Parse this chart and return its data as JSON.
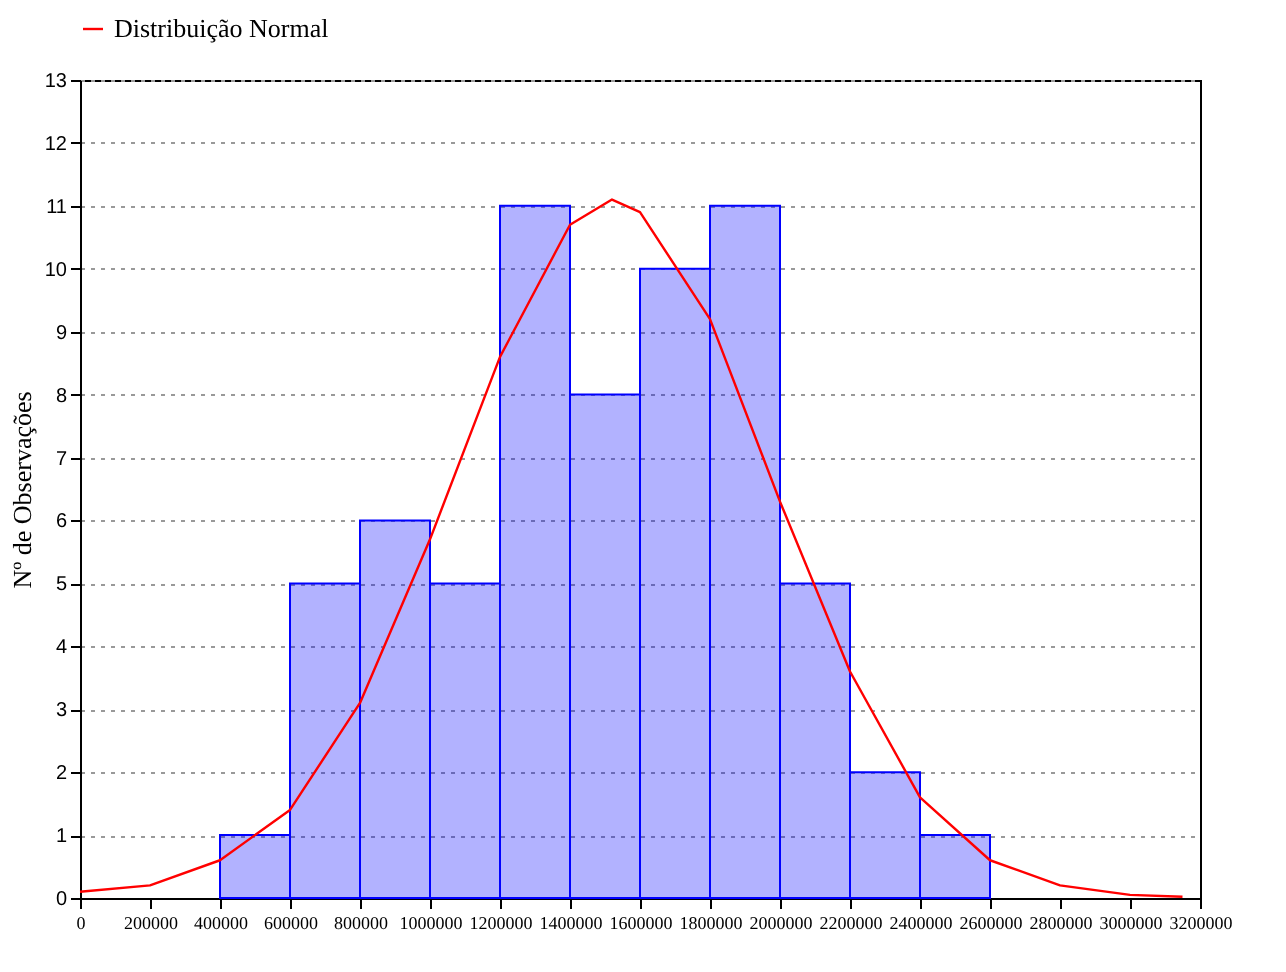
{
  "chart_data": {
    "type": "histogram",
    "ylabel": "Nº de Observações",
    "xlim": [
      0,
      3200000
    ],
    "xticks": [
      0,
      200000,
      400000,
      600000,
      800000,
      1000000,
      1200000,
      1400000,
      1600000,
      1800000,
      2000000,
      2200000,
      2400000,
      2600000,
      2800000,
      3000000,
      3200000
    ],
    "ylim": [
      0,
      13
    ],
    "yticks": [
      0,
      1,
      2,
      3,
      4,
      5,
      6,
      7,
      8,
      9,
      10,
      11,
      12,
      13
    ],
    "grid": "y",
    "legend": "top",
    "series": [
      {
        "type": "histogram",
        "color": "#0000ff",
        "bins": [
          400000,
          600000,
          800000,
          1000000,
          1200000,
          1400000,
          1600000,
          1800000,
          2000000,
          2200000,
          2400000,
          2600000
        ],
        "values": [
          1,
          5,
          6,
          5,
          11,
          8,
          10,
          11,
          5,
          2,
          1
        ]
      },
      {
        "type": "line",
        "name": "Distribuição Normal",
        "color": "#ff0000",
        "x": [
          0,
          200000,
          400000,
          600000,
          800000,
          1000000,
          1200000,
          1400000,
          1520000,
          1600000,
          1800000,
          2000000,
          2200000,
          2400000,
          2600000,
          2800000,
          3000000,
          3150000
        ],
        "values": [
          0.1,
          0.2,
          0.6,
          1.4,
          3.1,
          5.7,
          8.6,
          10.7,
          11.1,
          10.9,
          9.2,
          6.3,
          3.6,
          1.6,
          0.6,
          0.2,
          0.05,
          0.02
        ]
      }
    ]
  }
}
